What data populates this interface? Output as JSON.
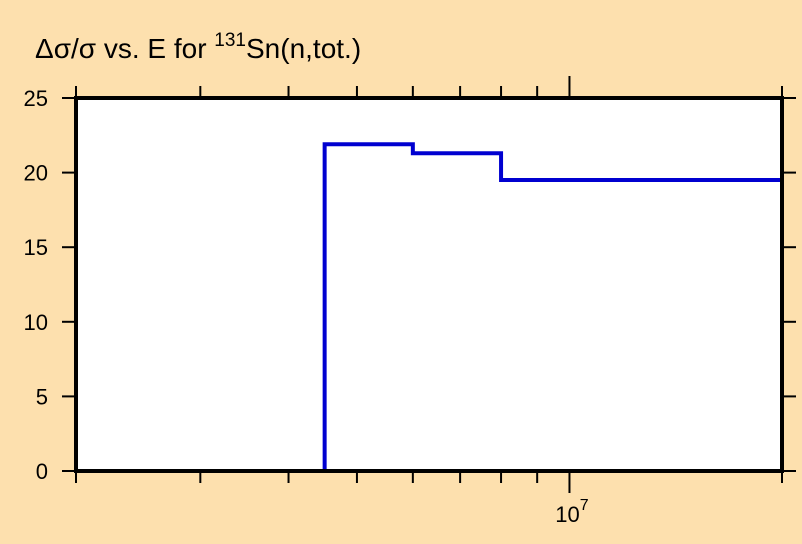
{
  "chart_data": {
    "type": "line",
    "title": {
      "prefix": "Δσ/σ vs. E for ",
      "superscript": "131",
      "suffix": "Sn(n,tot.)"
    },
    "xlabel": "",
    "ylabel": "",
    "x_scale": "log",
    "xlim": [
      2000000,
      20000000
    ],
    "ylim": [
      0,
      25
    ],
    "grid": false,
    "y_ticks": [
      "0",
      "5",
      "10",
      "15",
      "20",
      "25"
    ],
    "x_tick_label": {
      "base": "10",
      "exponent": "7"
    },
    "series": [
      {
        "color": "#0000d0",
        "step_x": [
          4500000,
          6000000,
          8000000,
          20000000
        ],
        "step_y": [
          0,
          21.9,
          21.3,
          19.5,
          0
        ]
      }
    ]
  }
}
